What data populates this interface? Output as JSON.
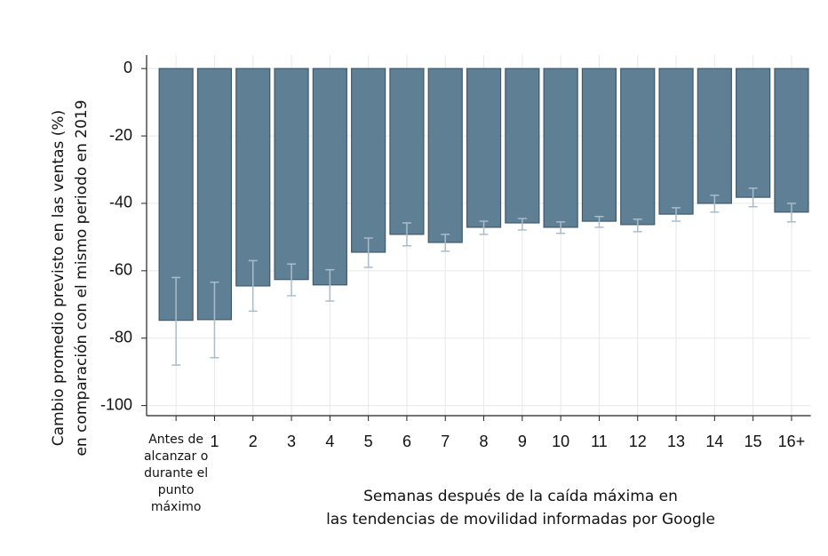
{
  "chart_data": {
    "type": "bar",
    "ylabel": [
      "Cambio promedio previsto en las ventas (%)",
      "en comparación con el mismo periodo en 2019"
    ],
    "xlabel": [
      "Semanas después de la caída máxima en",
      "las tendencias de movilidad informadas por Google"
    ],
    "categories": [
      "Antes de alcanzar o durante el punto máximo",
      "1",
      "2",
      "3",
      "4",
      "5",
      "6",
      "7",
      "8",
      "9",
      "10",
      "11",
      "12",
      "13",
      "14",
      "15",
      "16+"
    ],
    "values": [
      -74.7,
      -74.5,
      -64.5,
      -62.6,
      -64.2,
      -54.5,
      -49.2,
      -51.6,
      -47.1,
      -45.8,
      -47.1,
      -45.3,
      -46.3,
      -43.2,
      -40.0,
      -38.2,
      -42.6
    ],
    "ci_high": [
      -62.0,
      -63.4,
      -57.0,
      -58.0,
      -59.7,
      -50.3,
      -45.8,
      -49.2,
      -45.3,
      -44.5,
      -45.5,
      -43.9,
      -44.7,
      -41.3,
      -37.6,
      -35.5,
      -40.0
    ],
    "ci_low": [
      -88.0,
      -85.8,
      -72.0,
      -67.4,
      -69.0,
      -59.0,
      -52.6,
      -54.2,
      -49.2,
      -47.9,
      -48.9,
      -47.1,
      -48.4,
      -45.3,
      -42.6,
      -41.0,
      -45.5
    ],
    "color": "#5f7f95",
    "error_color": "#a9bccb",
    "ylim": [
      -103,
      4
    ],
    "yticks": [
      0,
      -20,
      -40,
      -60,
      -80,
      -100
    ],
    "grid": true
  }
}
